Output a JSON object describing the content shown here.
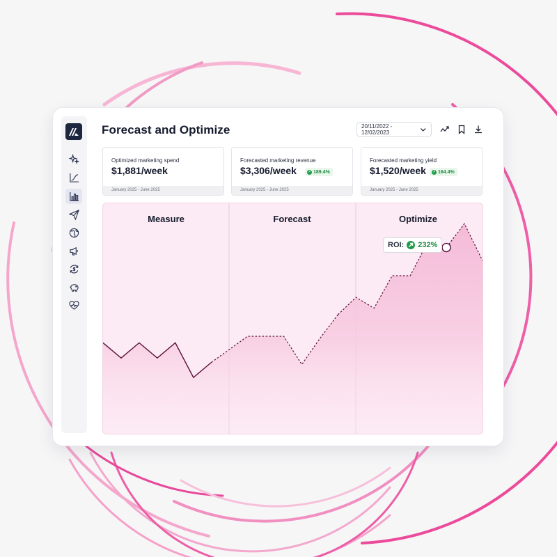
{
  "page": {
    "title": "Forecast and Optimize",
    "date_range": "20/11/2022 - 12/02/2023"
  },
  "sidebar": {
    "items": [
      {
        "name": "sparkles-icon"
      },
      {
        "name": "curve-chart-icon"
      },
      {
        "name": "bar-chart-icon",
        "active": true
      },
      {
        "name": "send-icon"
      },
      {
        "name": "globe-icon"
      },
      {
        "name": "megaphone-icon"
      },
      {
        "name": "refresh-dollar-icon"
      },
      {
        "name": "piggy-bank-icon"
      },
      {
        "name": "heart-pulse-icon"
      }
    ]
  },
  "toolbar": {
    "icons": [
      "trend-line-icon",
      "bookmark-icon",
      "download-icon"
    ]
  },
  "kpis": [
    {
      "label": "Optimized marketing spend",
      "value": "$1,881/week",
      "badge": "",
      "period": "January 2025 - June 2025"
    },
    {
      "label": "Forecasted marketing revenue",
      "value": "$3,306/week",
      "badge": "189.4%",
      "period": "January 2025 - June 2025"
    },
    {
      "label": "Forecasted marketing yield",
      "value": "$1,520/week",
      "badge": "164.4%",
      "period": "January 2025 - June 2025"
    }
  ],
  "chart": {
    "sections": [
      "Measure",
      "Forecast",
      "Optimize"
    ],
    "roi_label": "ROI:",
    "roi_value": "232%"
  },
  "colors": {
    "accent_pink": "#ec4a9a",
    "line_dark": "#5a0f38",
    "positive_green": "#1f8a3e",
    "logo_navy": "#1d2740"
  },
  "chart_data": {
    "type": "area",
    "x": [
      0,
      1,
      2,
      3,
      4,
      5,
      6,
      7,
      8,
      9,
      10,
      11,
      12,
      13,
      14,
      15,
      16,
      17,
      18,
      19,
      20,
      21
    ],
    "values": [
      0.42,
      0.35,
      0.42,
      0.35,
      0.42,
      0.26,
      0.33,
      0.39,
      0.45,
      0.45,
      0.45,
      0.32,
      0.44,
      0.55,
      0.63,
      0.58,
      0.73,
      0.73,
      0.89,
      0.86,
      0.97,
      0.8
    ],
    "segments": [
      {
        "name": "Measure",
        "start": 0,
        "end": 6,
        "style": "solid"
      },
      {
        "name": "Forecast",
        "start": 6,
        "end": 13,
        "style": "dashed"
      },
      {
        "name": "Optimize",
        "start": 13,
        "end": 21,
        "style": "dashed"
      }
    ],
    "highlight_index": 19,
    "ylim": [
      0,
      1
    ],
    "grid": false
  }
}
